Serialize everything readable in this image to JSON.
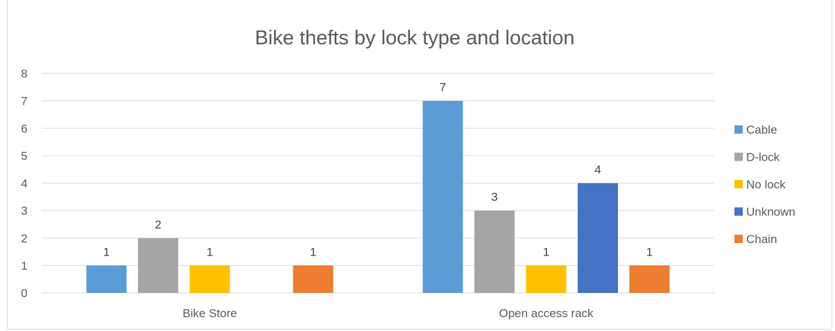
{
  "chart_data": {
    "type": "bar",
    "title": "Bike thefts by lock type and location",
    "categories": [
      "Bike Store",
      "Open access rack"
    ],
    "series": [
      {
        "name": "Cable",
        "color": "#5b9bd5",
        "values": [
          1,
          7
        ]
      },
      {
        "name": "D-lock",
        "color": "#a5a5a5",
        "values": [
          2,
          3
        ]
      },
      {
        "name": "No lock",
        "color": "#ffc000",
        "values": [
          1,
          1
        ]
      },
      {
        "name": "Unknown",
        "color": "#4472c4",
        "values": [
          null,
          4
        ]
      },
      {
        "name": "Chain",
        "color": "#ed7d31",
        "values": [
          1,
          1
        ]
      }
    ],
    "ylim": [
      0,
      8
    ],
    "yticks": [
      0,
      1,
      2,
      3,
      4,
      5,
      6,
      7,
      8
    ],
    "grid": true,
    "legend_position": "right",
    "data_labels": true
  }
}
